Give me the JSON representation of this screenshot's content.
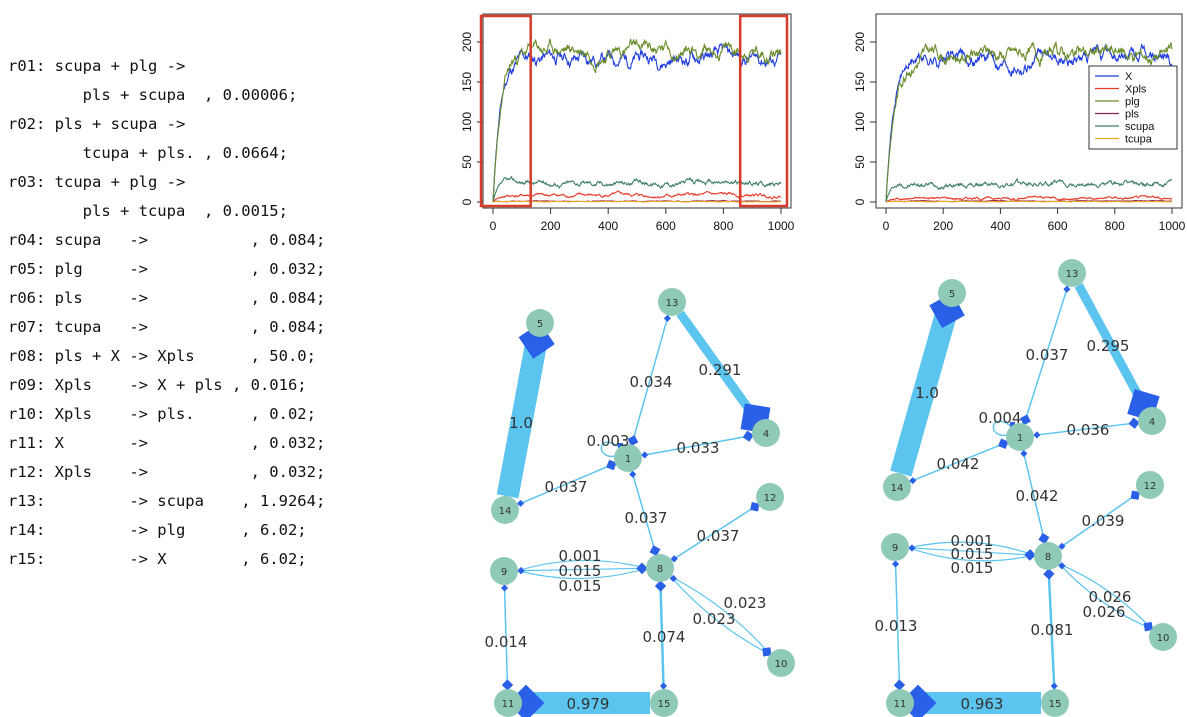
{
  "reactions": [
    "r01: scupa + plg ->",
    "        pls + scupa  , 0.00006;",
    "r02: pls + scupa ->",
    "        tcupa + pls. , 0.0664;",
    "r03: tcupa + plg ->",
    "        pls + tcupa  , 0.0015;",
    "r04: scupa   ->           , 0.084;",
    "r05: plg     ->           , 0.032;",
    "r06: pls     ->           , 0.084;",
    "r07: tcupa   ->           , 0.084;",
    "r08: pls + X -> Xpls      , 50.0;",
    "r09: Xpls    -> X + pls , 0.016;",
    "r10: Xpls    -> pls.      , 0.02;",
    "r11: X       ->           , 0.032;",
    "r12: Xpls    ->           , 0.032;",
    "r13:         -> scupa    , 1.9264;",
    "r14:         -> plg      , 6.02;",
    "r15:         -> X        , 6.02;"
  ],
  "colors": {
    "X": "#1f3de0",
    "Xpls": "#e8392a",
    "plg": "#6b8c2a",
    "pls": "#8b2252",
    "scupa": "#3f7f6a",
    "tcupa": "#f2a81d",
    "highlight": "#d93b2a",
    "edge": "#5bc4ef",
    "node": "#8fcab8",
    "arrow": "#2a5fe8"
  },
  "chart_data": [
    {
      "type": "line",
      "xlim": [
        0,
        1000
      ],
      "ylim": [
        0,
        225
      ],
      "xticks": [
        "0",
        "200",
        "400",
        "600",
        "800",
        "1000"
      ],
      "yticks": [
        "0",
        "50",
        "100",
        "150",
        "200"
      ],
      "highlight_ranges": [
        [
          0,
          110
        ],
        [
          900,
          1000
        ]
      ],
      "series": [
        {
          "key": "X",
          "plateau": 180,
          "noise": 11,
          "rise": 25,
          "seed": 11
        },
        {
          "key": "plg",
          "plateau": 190,
          "noise": 11,
          "rise": 30,
          "seed": 23
        },
        {
          "key": "scupa",
          "plateau": 24,
          "noise": 4,
          "rise": 15,
          "seed": 37
        },
        {
          "key": "Xpls",
          "plateau": 8,
          "noise": 2.5,
          "rise": 20,
          "seed": 41
        },
        {
          "key": "pls",
          "plateau": 1,
          "noise": 0.5,
          "rise": 5,
          "seed": 53
        },
        {
          "key": "tcupa",
          "plateau": 0.5,
          "noise": 0.3,
          "rise": 5,
          "seed": 61
        }
      ]
    },
    {
      "type": "line",
      "xlim": [
        0,
        1000
      ],
      "ylim": [
        0,
        225
      ],
      "xticks": [
        "0",
        "200",
        "400",
        "600",
        "800",
        "1000"
      ],
      "yticks": [
        "0",
        "50",
        "100",
        "150",
        "200"
      ],
      "legend": [
        "X",
        "Xpls",
        "plg",
        "pls",
        "scupa",
        "tcupa"
      ],
      "legend_position": "right",
      "series": [
        {
          "key": "X",
          "plateau": 180,
          "noise": 11,
          "rise": 25,
          "seed": 71
        },
        {
          "key": "plg",
          "plateau": 185,
          "noise": 11,
          "rise": 30,
          "seed": 83
        },
        {
          "key": "scupa",
          "plateau": 22,
          "noise": 4,
          "rise": 15,
          "seed": 97
        },
        {
          "key": "Xpls",
          "plateau": 5,
          "noise": 2,
          "rise": 20,
          "seed": 101
        },
        {
          "key": "pls",
          "plateau": 1,
          "noise": 0.5,
          "rise": 5,
          "seed": 113
        },
        {
          "key": "tcupa",
          "plateau": 0.5,
          "noise": 0.3,
          "rise": 5,
          "seed": 127
        }
      ]
    }
  ],
  "graphs": [
    {
      "nodes": [
        "5",
        "13",
        "4",
        "1",
        "14",
        "12",
        "9",
        "8",
        "10",
        "11",
        "15"
      ],
      "edge_labels": {
        "e14_5": "1.0",
        "e13_1": "0.034",
        "e13_4": "0.291",
        "e1_1": "0.003",
        "e1_4": "0.033",
        "e14_1": "0.037",
        "e1_8": "0.037",
        "e8_12": "0.037",
        "e9_8a": "0.001",
        "e9_8b": "0.015",
        "e9_8c": "0.015",
        "e8_10a": "0.023",
        "e8_10b": "0.023",
        "e9_11": "0.014",
        "e15_8": "0.074",
        "e15_11": "0.979"
      }
    },
    {
      "nodes": [
        "5",
        "13",
        "4",
        "1",
        "14",
        "12",
        "9",
        "8",
        "10",
        "11",
        "15"
      ],
      "edge_labels": {
        "e14_5": "1.0",
        "e13_1": "0.037",
        "e13_4": "0.295",
        "e1_1": "0.004",
        "e1_4": "0.036",
        "e14_1": "0.042",
        "e1_8": "0.042",
        "e8_12": "0.039",
        "e9_8a": "0.001",
        "e9_8b": "0.015",
        "e9_8c": "0.015",
        "e8_10a": "0.026",
        "e8_10b": "0.026",
        "e9_11": "0.013",
        "e15_8": "0.081",
        "e15_11": "0.963"
      }
    }
  ]
}
